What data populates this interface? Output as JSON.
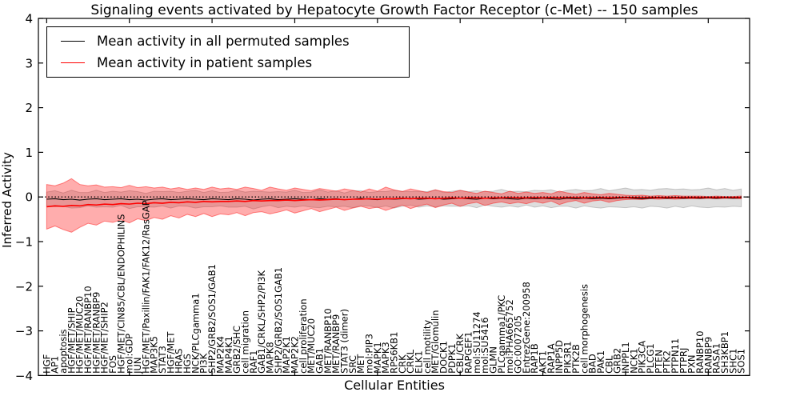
{
  "figure": {
    "background": "#ffffff",
    "accent_red": "#ff0000",
    "line_black": "#000000"
  },
  "legend": {
    "entries": [
      {
        "label": "Mean activity in all permuted samples",
        "color": "#000000"
      },
      {
        "label": "Mean activity in patient samples",
        "color": "#ff0000"
      }
    ]
  },
  "chart_data": {
    "type": "line",
    "title": "Signaling events activated by Hepatocyte Growth Factor Receptor (c-Met) -- 150 samples",
    "xlabel": "Cellular Entities",
    "ylabel": "Inferred Activity",
    "ylim": [
      -4,
      4
    ],
    "yticks": [
      -4,
      -3,
      -2,
      -1,
      0,
      1,
      2,
      3,
      4
    ],
    "xlim": [
      -1,
      85
    ],
    "xtick_major_interval": 10,
    "grid": false,
    "legend_position": "upper left",
    "zero_line": {
      "y": 0,
      "style": "dotted",
      "color": "#000000"
    },
    "categories": [
      "HGF",
      "AP1",
      "apoptosis",
      "HGF/MET/SHIP",
      "HGF/MET/MUC20",
      "HGF/MET/RANBP10",
      "HGF/MET/RANBP9",
      "HGF/MET/SHIP2",
      "FOS",
      "HGF/MET/CIN85/CBL/ENDOPHILINS",
      "mol:GDP",
      "JUN",
      "HGF/MET/Paxillin/FAK1/FAK12/RasGAP",
      "MAP3K5",
      "STAT3",
      "HGF/MET",
      "HRAS",
      "HGS",
      "NCK/PLCgamma1",
      "PI3K",
      "SHP2/GRB2/SOS1/GAB1",
      "MAP2K4",
      "MAP4K1",
      "GRB2/SHC",
      "cell migration",
      "RAF1",
      "GAB1/CRKL/SHP2/PI3K",
      "MAPK8",
      "SHP2/GRB2/SOS1GAB1",
      "MAP2K1",
      "MAP2K2",
      "cell proliferation",
      "MET/MUC20",
      "GAB1",
      "MET/RANBP10",
      "MET/RANBP9",
      "STAT3 (dimer)",
      "SRC",
      "MET",
      "mol:PIP3",
      "MAPK1",
      "MAPK3",
      "RPS6KB1",
      "CRK",
      "CRKL",
      "ELK1",
      "cell motility",
      "MET/Glomulin",
      "DOCK1",
      "PDPK1",
      "CBL/CRK",
      "RAPGEF1",
      "mol:SU11274",
      "mol:SU5416",
      "GLMN",
      "PLCgamma1/PKC",
      "mol:PHA665752",
      "GO:0007205",
      "EntrezGene:200958",
      "RAP1B",
      "AKT1",
      "RAP1A",
      "INPP5D",
      "PIK3R1",
      "PTK2B",
      "cell morphogenesis",
      "BAD",
      "PAK1",
      "CBL",
      "GRB2",
      "INPPL1",
      "NCK1",
      "PIK3CA",
      "PLCG1",
      "PTEN",
      "PTK2",
      "PTPN11",
      "PTPRJ",
      "PXN",
      "RANBP10",
      "RANBP9",
      "RASA1",
      "SH3KBP1",
      "SHC1",
      "SOS1"
    ],
    "series": [
      {
        "name": "Mean activity in all permuted samples",
        "color": "#000000",
        "values": [
          -0.05,
          -0.04,
          -0.06,
          -0.05,
          -0.07,
          -0.05,
          -0.04,
          -0.06,
          -0.05,
          -0.04,
          -0.06,
          -0.05,
          -0.07,
          -0.05,
          -0.04,
          -0.06,
          -0.05,
          -0.04,
          -0.05,
          -0.06,
          -0.04,
          -0.05,
          -0.06,
          -0.04,
          -0.05,
          -0.07,
          -0.05,
          -0.04,
          -0.06,
          -0.05,
          -0.04,
          -0.05,
          -0.06,
          -0.04,
          -0.05,
          -0.04,
          -0.06,
          -0.05,
          -0.03,
          -0.05,
          -0.06,
          -0.04,
          -0.05,
          -0.04,
          -0.03,
          -0.05,
          -0.04,
          -0.03,
          -0.05,
          -0.04,
          -0.03,
          -0.04,
          -0.05,
          -0.03,
          -0.04,
          -0.03,
          -0.04,
          -0.05,
          -0.03,
          -0.04,
          -0.03,
          -0.04,
          -0.05,
          -0.03,
          -0.04,
          -0.03,
          -0.04,
          -0.03,
          -0.04,
          -0.03,
          -0.02,
          -0.03,
          -0.04,
          -0.03,
          -0.02,
          -0.03,
          -0.02,
          -0.03,
          -0.02,
          -0.03,
          -0.02,
          -0.03,
          -0.02,
          -0.03,
          -0.02
        ]
      },
      {
        "name": "Mean activity in patient samples",
        "color": "#ff0000",
        "values": [
          -0.22,
          -0.2,
          -0.21,
          -0.19,
          -0.2,
          -0.17,
          -0.18,
          -0.16,
          -0.17,
          -0.15,
          -0.16,
          -0.14,
          -0.15,
          -0.13,
          -0.14,
          -0.12,
          -0.13,
          -0.11,
          -0.12,
          -0.1,
          -0.11,
          -0.1,
          -0.1,
          -0.09,
          -0.1,
          -0.08,
          -0.09,
          -0.08,
          -0.08,
          -0.07,
          -0.08,
          -0.07,
          -0.06,
          -0.07,
          -0.06,
          -0.05,
          -0.06,
          -0.05,
          -0.05,
          -0.04,
          -0.05,
          -0.04,
          -0.04,
          -0.03,
          -0.04,
          -0.03,
          -0.03,
          -0.04,
          -0.03,
          -0.02,
          -0.03,
          -0.02,
          -0.02,
          -0.03,
          -0.02,
          -0.02,
          -0.01,
          -0.02,
          -0.02,
          -0.01,
          -0.02,
          -0.01,
          -0.02,
          -0.01,
          -0.01,
          -0.02,
          -0.01,
          -0.01,
          -0.02,
          -0.01,
          -0.01,
          -0.01,
          -0.01,
          -0.01,
          -0.01,
          -0.01,
          -0.01,
          -0.01,
          -0.01,
          -0.01,
          -0.01,
          -0.01,
          -0.01,
          -0.01,
          -0.01
        ]
      }
    ],
    "bands": [
      {
        "name": "permuted samples ± std",
        "fill": "rgba(0,0,0,0.13)",
        "stroke": "rgba(0,0,0,0.18)",
        "mean_series": 0,
        "std": [
          0.16,
          0.18,
          0.15,
          0.2,
          0.17,
          0.15,
          0.19,
          0.16,
          0.18,
          0.15,
          0.2,
          0.17,
          0.15,
          0.18,
          0.16,
          0.19,
          0.15,
          0.17,
          0.2,
          0.16,
          0.18,
          0.15,
          0.17,
          0.19,
          0.16,
          0.2,
          0.17,
          0.15,
          0.18,
          0.16,
          0.19,
          0.15,
          0.17,
          0.2,
          0.16,
          0.18,
          0.15,
          0.19,
          0.17,
          0.15,
          0.18,
          0.16,
          0.2,
          0.17,
          0.15,
          0.18,
          0.16,
          0.19,
          0.15,
          0.17,
          0.18,
          0.16,
          0.19,
          0.15,
          0.17,
          0.2,
          0.16,
          0.18,
          0.15,
          0.19,
          0.17,
          0.2,
          0.16,
          0.18,
          0.21,
          0.17,
          0.19,
          0.22,
          0.18,
          0.2,
          0.22,
          0.19,
          0.21,
          0.18,
          0.2,
          0.22,
          0.19,
          0.21,
          0.18,
          0.2,
          0.22,
          0.19,
          0.21,
          0.18,
          0.2
        ]
      },
      {
        "name": "patient samples ± std",
        "fill": "rgba(255,0,0,0.32)",
        "stroke": "rgba(255,0,0,0.45)",
        "mean_series": 1,
        "std": [
          0.5,
          0.45,
          0.52,
          0.6,
          0.48,
          0.42,
          0.45,
          0.38,
          0.4,
          0.36,
          0.42,
          0.35,
          0.38,
          0.33,
          0.36,
          0.3,
          0.34,
          0.28,
          0.32,
          0.27,
          0.33,
          0.28,
          0.3,
          0.26,
          0.32,
          0.27,
          0.24,
          0.3,
          0.26,
          0.22,
          0.28,
          0.24,
          0.2,
          0.26,
          0.22,
          0.18,
          0.24,
          0.2,
          0.16,
          0.22,
          0.18,
          0.26,
          0.2,
          0.15,
          0.22,
          0.17,
          0.13,
          0.2,
          0.15,
          0.12,
          0.18,
          0.13,
          0.1,
          0.16,
          0.12,
          0.09,
          0.14,
          0.1,
          0.13,
          0.09,
          0.12,
          0.08,
          0.15,
          0.1,
          0.07,
          0.12,
          0.08,
          0.06,
          0.1,
          0.07,
          0.05,
          0.04,
          0.05,
          0.03,
          0.04,
          0.03,
          0.04,
          0.03,
          0.03,
          0.03,
          0.02,
          0.03,
          0.02,
          0.02,
          0.03
        ]
      }
    ]
  }
}
